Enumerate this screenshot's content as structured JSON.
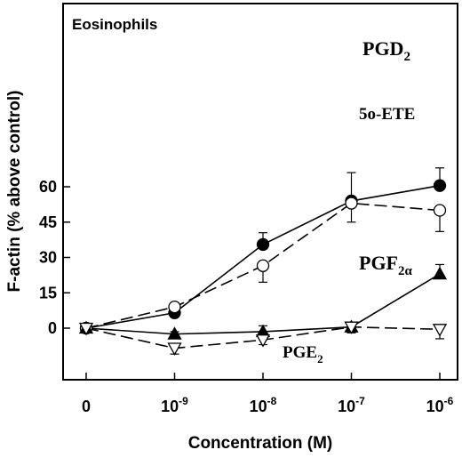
{
  "chart_data": {
    "type": "line",
    "title": "",
    "panel_label": "Eosinophils",
    "xlabel": "Concentration (M)",
    "ylabel": "F-actin (% above control)",
    "x_categories": [
      "0",
      "10-9",
      "10-8",
      "10-7",
      "10-6"
    ],
    "x_tick_labels": [
      {
        "base": "0",
        "exp": ""
      },
      {
        "base": "10",
        "exp": "-9"
      },
      {
        "base": "10",
        "exp": "-8"
      },
      {
        "base": "10",
        "exp": "-7"
      },
      {
        "base": "10",
        "exp": "-6"
      }
    ],
    "yticks": [
      0,
      15,
      30,
      45,
      60
    ],
    "ylim": [
      -10,
      69
    ],
    "grid": false,
    "series": [
      {
        "name": "PGD2",
        "label_base": "PGD",
        "label_sub": "2",
        "marker": "filled-circle",
        "line": "solid",
        "values": [
          0,
          6.5,
          35.5,
          54,
          60.5
        ],
        "errors": [
          0,
          3,
          5,
          12,
          7.5
        ],
        "error_dir": "up"
      },
      {
        "name": "5o-ETE",
        "label_base": "5o-ETE",
        "label_sub": "",
        "marker": "open-circle",
        "line": "dashed",
        "values": [
          0,
          9,
          26.5,
          53,
          50
        ],
        "errors": [
          0,
          4,
          7,
          8,
          9
        ],
        "error_dir": "mixed"
      },
      {
        "name": "PGF2α",
        "label_base": "PGF",
        "label_sub": "2α",
        "marker": "filled-triangle",
        "line": "solid",
        "values": [
          0,
          -2.5,
          -1.5,
          0.5,
          23
        ],
        "errors": [
          0,
          1,
          2.5,
          2,
          4
        ],
        "error_dir": "mixed"
      },
      {
        "name": "PGE2",
        "label_base": "PGE",
        "label_sub": "2",
        "marker": "open-triangle-down",
        "line": "dashed",
        "values": [
          0,
          -8.5,
          -5,
          0.5,
          -0.5
        ],
        "errors": [
          0,
          2.5,
          2,
          2.5,
          4
        ],
        "error_dir": "mixed"
      }
    ]
  }
}
